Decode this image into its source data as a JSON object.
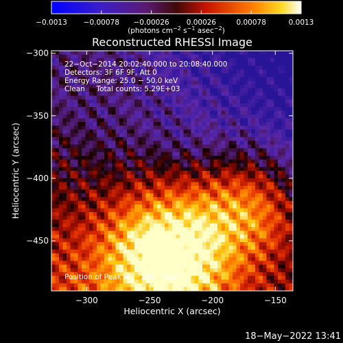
{
  "chart_data": {
    "type": "heatmap",
    "title": "Reconstructed RHESSI Image",
    "xlabel": "Heliocentric X (arcsec)",
    "ylabel": "Heliocentric Y (arcsec)",
    "xlim": [
      -328,
      -136
    ],
    "ylim": [
      -490,
      -298
    ],
    "x_ticks": [
      -300,
      -250,
      -200,
      -150
    ],
    "x_tick_labels": [
      "−300",
      "−250",
      "−200",
      "−150"
    ],
    "y_ticks": [
      -300,
      -350,
      -400,
      -450
    ],
    "y_tick_labels": [
      "−300",
      "−350",
      "−400",
      "−450"
    ],
    "colorbar": {
      "range": [
        -0.0013,
        0.0013
      ],
      "ticks": [
        -0.0013,
        -0.00078,
        -0.00026,
        0.00026,
        0.00078,
        0.0013
      ],
      "tick_labels": [
        "−0.0013",
        "−0.00078",
        "−0.00026",
        "0.00026",
        "0.00078",
        "0.0013"
      ],
      "units_text": "(photons cm",
      "units_sup1": "−2",
      "units_mid": " s",
      "units_sup2": "−1",
      "units_mid2": " asec",
      "units_sup3": "−2",
      "units_end": ")",
      "colors": [
        "#0000ff",
        "#5a1a9a",
        "#6a1010",
        "#ff2000",
        "#ffb000",
        "#ffffff"
      ]
    },
    "annotations": {
      "time_range": "22−Oct−2014 20:02:40.000 to 20:08:40.000",
      "detectors": "Detectors: 3F 6F 9F, Att 0",
      "energy_range": "Energy Range: 25.0 − 50.0 keV",
      "clean": "Clean     Total counts: 5.29E+03",
      "peak": "Position of Peak = [−235,−460]"
    },
    "peak_position": [
      -235,
      -460
    ],
    "grid": false
  },
  "footer": {
    "date": "18−May−2022 13:41"
  }
}
